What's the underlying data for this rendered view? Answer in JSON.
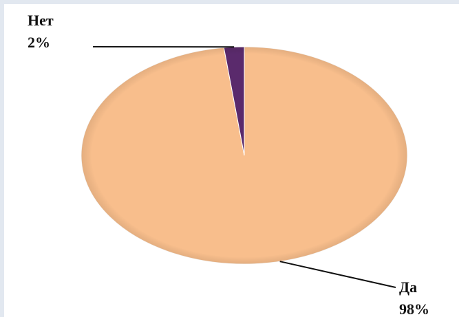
{
  "chart_data": {
    "type": "pie",
    "categories": [
      "Да",
      "Нет"
    ],
    "values": [
      98,
      2
    ],
    "value_labels": [
      "98%",
      "2%"
    ],
    "colors": [
      "#f8be8c",
      "#5a2a6c"
    ]
  }
}
